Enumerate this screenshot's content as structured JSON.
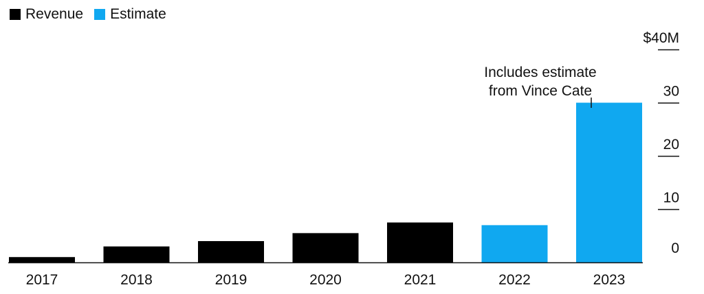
{
  "legend": {
    "revenue_label": "Revenue",
    "estimate_label": "Estimate"
  },
  "colors": {
    "revenue": "#000000",
    "estimate": "#10a8f0",
    "axis": "#111111"
  },
  "annotation": {
    "line1": "Includes estimate",
    "line2": "from Vince Cate",
    "target_year": "2023"
  },
  "chart_data": {
    "type": "bar",
    "categories": [
      "2017",
      "2018",
      "2019",
      "2020",
      "2021",
      "2022",
      "2023"
    ],
    "values": [
      1,
      3,
      4,
      5.5,
      7.5,
      7,
      30
    ],
    "kind": [
      "Revenue",
      "Revenue",
      "Revenue",
      "Revenue",
      "Revenue",
      "Estimate",
      "Estimate"
    ],
    "y_ticks": [
      "0",
      "10",
      "20",
      "30",
      "$40M"
    ],
    "y_tick_values": [
      0,
      10,
      20,
      30,
      40
    ],
    "ylim": [
      0,
      40
    ],
    "grid": false,
    "legend_position": "top-left",
    "title": "",
    "xlabel": "",
    "ylabel": ""
  }
}
